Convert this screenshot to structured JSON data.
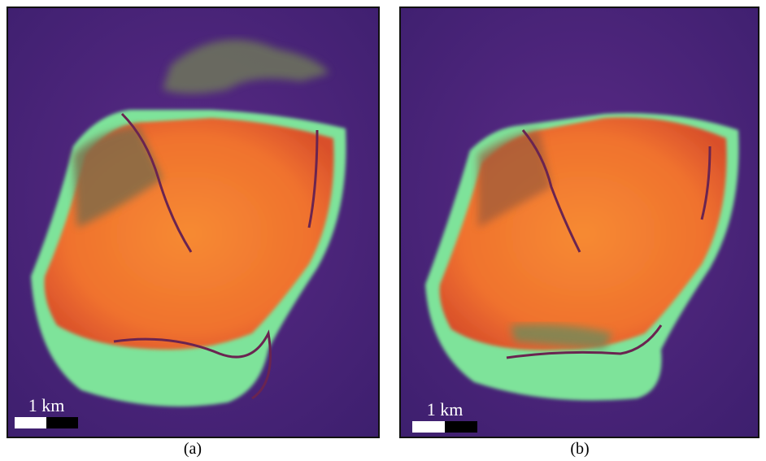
{
  "panels": [
    {
      "scale_label": "1 km",
      "caption": "(a)"
    },
    {
      "scale_label": "1 km",
      "caption": "(b)"
    }
  ]
}
